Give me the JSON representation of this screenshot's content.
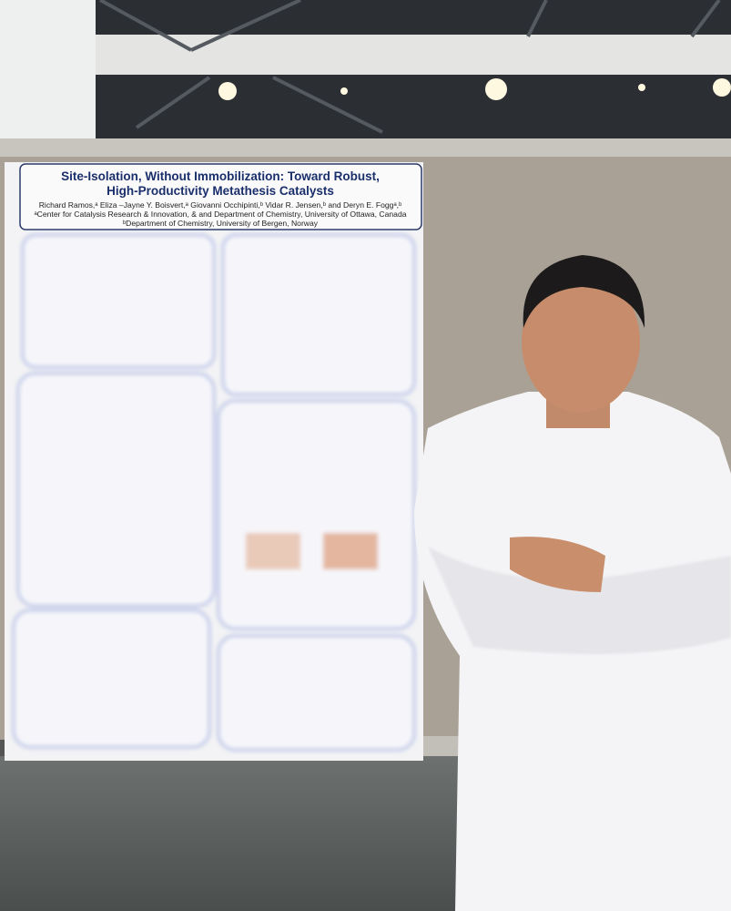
{
  "poster": {
    "title_lines": [
      "Site-Isolation, Without Immobilization: Toward Robust,",
      "High-Productivity Metathesis Catalysts"
    ],
    "authors": "Richard Ramos,ᵃ Eliza –Jayne Y. Boisvert,ᵃ Giovanni Occhipinti,ᵇ Vidar R. Jensen,ᵇ and Deryn E. Foggᵃ,ᵇ",
    "affiliations": [
      "ᵃCenter for Catalysis Research & Innovation, & and Department of Chemistry, University of Ottawa, Canada",
      "ᵇDepartment of Chemistry, University of Bergen, Norway"
    ]
  }
}
